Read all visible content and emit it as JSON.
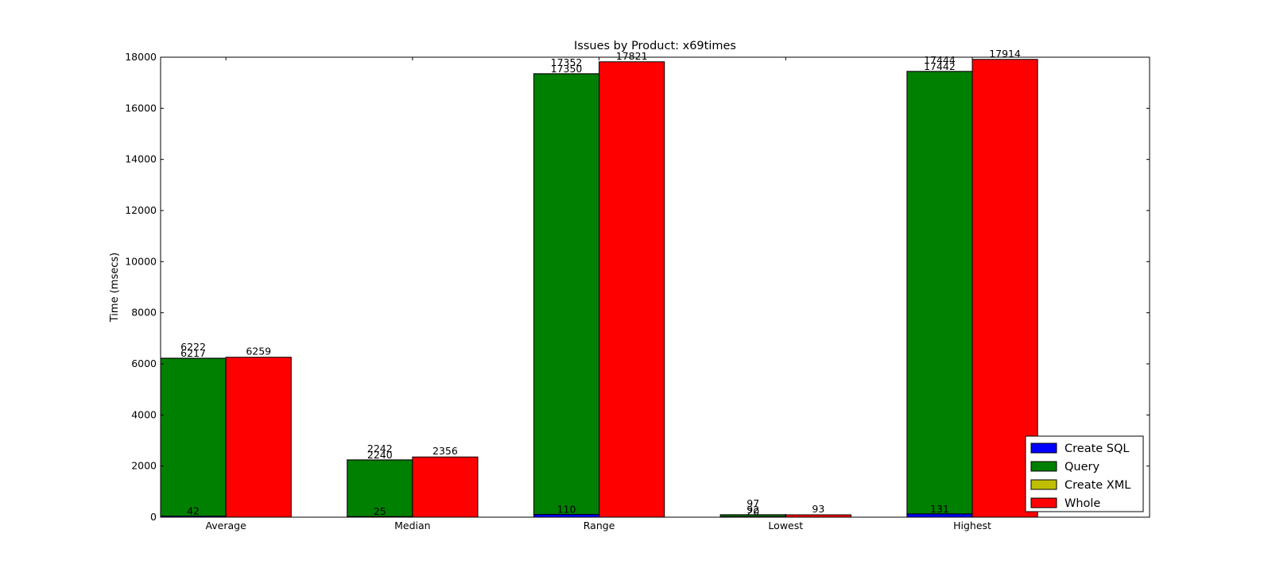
{
  "chart_data": {
    "type": "bar",
    "title": "Issues by Product: x69times",
    "xlabel": "",
    "ylabel": "Time (msecs)",
    "ylim": [
      0,
      18000
    ],
    "yticks": [
      0,
      2000,
      4000,
      6000,
      8000,
      10000,
      12000,
      14000,
      16000,
      18000
    ],
    "categories": [
      "Average",
      "Median",
      "Range",
      "Lowest",
      "Highest"
    ],
    "stacked_series": [
      {
        "name": "Create SQL",
        "color": "#0000ff",
        "values": [
          42,
          25,
          110,
          20,
          131
        ]
      },
      {
        "name": "Query",
        "color": "#008000",
        "values": [
          6175,
          2215,
          17240,
          72,
          17311
        ]
      },
      {
        "name": "Create XML",
        "color": "#bfbf00",
        "values": [
          5,
          2,
          2,
          5,
          2
        ]
      }
    ],
    "whole_series": {
      "name": "Whole",
      "color": "#ff0000",
      "values": [
        6259,
        2356,
        17821,
        93,
        17914
      ]
    },
    "data_labels": {
      "create_sql": [
        "42",
        "25",
        "110",
        "20",
        "131"
      ],
      "query_cumulative": [
        "6217",
        "2240",
        "17350",
        "92",
        "17442"
      ],
      "xml_cumulative": [
        "6222",
        "2242",
        "17352",
        "97",
        "17444"
      ],
      "whole": [
        "6259",
        "2356",
        "17821",
        "93",
        "17914"
      ]
    },
    "legend": {
      "placement": "lower-right",
      "entries": [
        {
          "label": "Create SQL",
          "color": "#0000ff"
        },
        {
          "label": "Query",
          "color": "#008000"
        },
        {
          "label": "Create XML",
          "color": "#bfbf00"
        },
        {
          "label": "Whole",
          "color": "#ff0000"
        }
      ]
    },
    "grid": false
  }
}
